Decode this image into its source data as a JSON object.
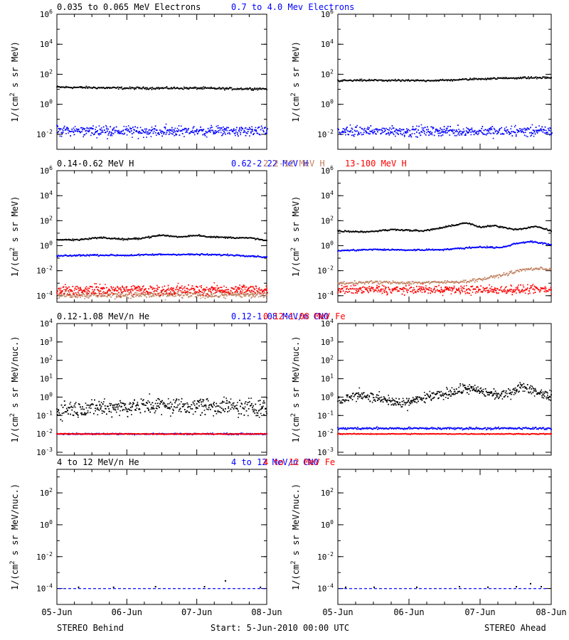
{
  "footer": {
    "left": "STEREO Behind",
    "center": "Start:  5-Jun-2010 00:00 UTC",
    "right": "STEREO Ahead"
  },
  "colors": {
    "black": "#000000",
    "blue": "#0000ff",
    "tan": "#c08060",
    "red": "#ff0000"
  },
  "x_ticks": [
    "05-Jun",
    "06-Jun",
    "07-Jun",
    "08-Jun"
  ],
  "chart_data": [
    {
      "type": "scatter",
      "row": 0,
      "side": "behind",
      "ylabel": "1/(cm2 s sr MeV)",
      "yscale": "log",
      "ylim": [
        0.001,
        1000000
      ],
      "ytick_exps": [
        -2,
        0,
        2,
        4,
        6
      ],
      "xlim": [
        0,
        3
      ],
      "legend": [
        {
          "label": "0.035 to 0.065 MeV Electrons",
          "color": "#000000"
        },
        {
          "label": "0.7 to 4.0 Mev Electrons",
          "color": "#0000ff"
        }
      ],
      "series": [
        {
          "name": "0.035 to 0.065 MeV Electrons",
          "color": "#000000",
          "x": [
            0,
            0.5,
            1,
            1.5,
            2,
            2.5,
            3
          ],
          "y": [
            14,
            13,
            12,
            12,
            12,
            11,
            11
          ],
          "scatter": 0.06
        },
        {
          "name": "0.7 to 4.0 Mev Electrons",
          "color": "#0000ff",
          "x": [
            0,
            0.5,
            1,
            1.5,
            2,
            2.5,
            3
          ],
          "y": [
            0.018,
            0.017,
            0.016,
            0.016,
            0.016,
            0.016,
            0.016
          ],
          "scatter": 0.25
        }
      ]
    },
    {
      "type": "scatter",
      "row": 0,
      "side": "ahead",
      "ylabel": "1/(cm2 s sr MeV)",
      "yscale": "log",
      "ylim": [
        0.001,
        1000000
      ],
      "ytick_exps": [
        -2,
        0,
        2,
        4,
        6
      ],
      "xlim": [
        0,
        3
      ],
      "legend": [],
      "series": [
        {
          "name": "0.035 to 0.065 MeV Electrons",
          "color": "#000000",
          "x": [
            0,
            0.5,
            1,
            1.5,
            2,
            2.5,
            3
          ],
          "y": [
            38,
            40,
            38,
            40,
            50,
            58,
            60
          ],
          "scatter": 0.05
        },
        {
          "name": "0.7 to 4.0 Mev Electrons",
          "color": "#0000ff",
          "x": [
            0,
            0.5,
            1,
            1.5,
            2,
            2.5,
            3
          ],
          "y": [
            0.016,
            0.016,
            0.016,
            0.016,
            0.016,
            0.016,
            0.016
          ],
          "scatter": 0.25
        }
      ]
    },
    {
      "type": "scatter",
      "row": 1,
      "side": "behind",
      "ylabel": "1/(cm2 s sr MeV)",
      "yscale": "log",
      "ylim": [
        3e-05,
        1000000
      ],
      "ytick_exps": [
        -4,
        -2,
        0,
        2,
        4,
        6
      ],
      "xlim": [
        0,
        3
      ],
      "legend": [
        {
          "label": "0.14-0.62 MeV H",
          "color": "#000000"
        },
        {
          "label": "0.62-2.22 MeV H",
          "color": "#0000ff"
        },
        {
          "label": "2.2-12 MeV H",
          "color": "#c08060"
        },
        {
          "label": "13-100 MeV H",
          "color": "#ff0000"
        }
      ],
      "series": [
        {
          "name": "0.14-0.62 MeV H",
          "color": "#000000",
          "x": [
            0,
            0.3,
            0.6,
            1,
            1.2,
            1.5,
            1.75,
            2,
            2.2,
            2.5,
            2.8,
            3
          ],
          "y": [
            3,
            3,
            4.5,
            3.2,
            4,
            7,
            5,
            7,
            5,
            4.5,
            4,
            2.5
          ],
          "scatter": 0.05
        },
        {
          "name": "0.62-2.22 MeV H",
          "color": "#0000ff",
          "x": [
            0,
            0.5,
            1,
            1.5,
            2,
            2.5,
            2.8,
            3
          ],
          "y": [
            0.15,
            0.18,
            0.17,
            0.2,
            0.2,
            0.18,
            0.15,
            0.12
          ],
          "scatter": 0.05
        },
        {
          "name": "2.2-12 MeV H",
          "color": "#c08060",
          "x": [
            0,
            1,
            2,
            3
          ],
          "y": [
            0.00012,
            0.00012,
            0.00012,
            0.00012
          ],
          "scatter": 0.2
        },
        {
          "name": "13-100 MeV H",
          "color": "#ff0000",
          "x": [
            0,
            1,
            2,
            3
          ],
          "y": [
            0.0003,
            0.0003,
            0.0003,
            0.0003
          ],
          "scatter": 0.3
        }
      ]
    },
    {
      "type": "scatter",
      "row": 1,
      "side": "ahead",
      "ylabel": "1/(cm2 s sr MeV)",
      "yscale": "log",
      "ylim": [
        3e-05,
        1000000
      ],
      "ytick_exps": [
        -4,
        -2,
        0,
        2,
        4,
        6
      ],
      "xlim": [
        0,
        3
      ],
      "legend": [],
      "series": [
        {
          "name": "0.14-0.62 MeV H",
          "color": "#000000",
          "x": [
            0,
            0.4,
            0.8,
            1.2,
            1.5,
            1.8,
            2,
            2.2,
            2.5,
            2.8,
            3
          ],
          "y": [
            15,
            13,
            20,
            15,
            30,
            70,
            30,
            40,
            20,
            35,
            15
          ],
          "scatter": 0.05
        },
        {
          "name": "0.62-2.22 MeV H",
          "color": "#0000ff",
          "x": [
            0,
            0.5,
            1,
            1.5,
            2,
            2.3,
            2.5,
            2.7,
            3
          ],
          "y": [
            0.4,
            0.5,
            0.45,
            0.5,
            0.8,
            0.7,
            1.5,
            2.2,
            1.2
          ],
          "scatter": 0.05
        },
        {
          "name": "2.2-12 MeV H",
          "color": "#c08060",
          "x": [
            0,
            0.5,
            1,
            1.5,
            1.8,
            2.1,
            2.4,
            2.6,
            2.8,
            3
          ],
          "y": [
            0.001,
            0.0012,
            0.0011,
            0.0012,
            0.0014,
            0.0025,
            0.006,
            0.012,
            0.015,
            0.013
          ],
          "scatter": 0.1
        },
        {
          "name": "13-100 MeV H",
          "color": "#ff0000",
          "x": [
            0,
            1,
            2,
            3
          ],
          "y": [
            0.0003,
            0.0003,
            0.0003,
            0.0003
          ],
          "scatter": 0.25
        }
      ]
    },
    {
      "type": "scatter",
      "row": 2,
      "side": "behind",
      "ylabel": "1/(cm2 s sr MeV/nuc.)",
      "yscale": "log",
      "ylim": [
        0.0007,
        10000
      ],
      "ytick_exps": [
        -3,
        -2,
        -1,
        0,
        1,
        2,
        3,
        4
      ],
      "xlim": [
        0,
        3
      ],
      "legend": [
        {
          "label": "0.12-1.08 MeV/n He",
          "color": "#000000"
        },
        {
          "label": "0.12-1.08 MeV/n CNO",
          "color": "#0000ff"
        },
        {
          "label": "0.12-1.08 MeV Fe",
          "color": "#ff0000"
        }
      ],
      "series": [
        {
          "name": "0.12-1.08 MeV/n He",
          "color": "#000000",
          "x": [
            0,
            0.5,
            1,
            1.5,
            2,
            2.5,
            3
          ],
          "y": [
            0.2,
            0.25,
            0.3,
            0.35,
            0.35,
            0.3,
            0.25
          ],
          "scatter": 0.35
        },
        {
          "name": "0.12-1.08 MeV/n CNO",
          "color": "#0000ff",
          "x": [
            0,
            1,
            2,
            3
          ],
          "y": [
            0.01,
            0.01,
            0.01,
            0.01
          ],
          "scatter": 0.03
        },
        {
          "name": "0.12-1.08 MeV Fe",
          "color": "#ff0000",
          "x": [
            0,
            1,
            2,
            3
          ],
          "y": [
            0.01,
            0.01,
            0.01,
            0.01
          ],
          "scatter": 0.02
        }
      ]
    },
    {
      "type": "scatter",
      "row": 2,
      "side": "ahead",
      "ylabel": "1/(cm2 s sr MeV/nuc.)",
      "yscale": "log",
      "ylim": [
        0.0007,
        10000
      ],
      "ytick_exps": [
        -3,
        -2,
        -1,
        0,
        1,
        2,
        3,
        4
      ],
      "xlim": [
        0,
        3
      ],
      "legend": [],
      "series": [
        {
          "name": "0.12-1.08 MeV/n He",
          "color": "#000000",
          "x": [
            0,
            0.3,
            0.6,
            0.9,
            1.2,
            1.5,
            1.8,
            2,
            2.3,
            2.6,
            2.8,
            3
          ],
          "y": [
            0.6,
            1.5,
            0.8,
            0.4,
            0.9,
            1.5,
            3,
            2,
            1.2,
            4,
            2,
            1
          ],
          "scatter": 0.2
        },
        {
          "name": "0.12-1.08 MeV/n CNO",
          "color": "#0000ff",
          "x": [
            0,
            1,
            2,
            3
          ],
          "y": [
            0.02,
            0.02,
            0.02,
            0.02
          ],
          "scatter": 0.05
        },
        {
          "name": "0.12-1.08 MeV Fe",
          "color": "#ff0000",
          "x": [
            0,
            1,
            2,
            3
          ],
          "y": [
            0.01,
            0.01,
            0.01,
            0.01
          ],
          "scatter": 0.02
        }
      ]
    },
    {
      "type": "scatter",
      "row": 3,
      "side": "behind",
      "ylabel": "1/(cm2 s sr MeV/nuc.)",
      "yscale": "log",
      "ylim": [
        1e-05,
        3000
      ],
      "ytick_exps": [
        -4,
        -2,
        0,
        2
      ],
      "xlim": [
        0,
        3
      ],
      "legend": [
        {
          "label": "4 to 12 MeV/n He",
          "color": "#000000"
        },
        {
          "label": "4 to 12 MeV/n CNO",
          "color": "#0000ff"
        },
        {
          "label": "4 to 12 MeV Fe",
          "color": "#ff0000"
        }
      ],
      "series": [
        {
          "name": "4 to 12 MeV/n CNO",
          "color": "#0000ff",
          "x": [
            0,
            1,
            2,
            3
          ],
          "y": [
            0.0001,
            0.0001,
            0.0001,
            0.0001
          ],
          "scatter": 0
        },
        {
          "name": "4 to 12 MeV/n He",
          "color": "#000000",
          "x": [
            0.3,
            0.8,
            1.4,
            2.1,
            2.4,
            2.9
          ],
          "y": [
            0.00012,
            0.00012,
            0.00013,
            0.00013,
            0.0003,
            0.00012
          ],
          "scatter": 0
        }
      ]
    },
    {
      "type": "scatter",
      "row": 3,
      "side": "ahead",
      "ylabel": "1/(cm2 s sr MeV/nuc.)",
      "yscale": "log",
      "ylim": [
        1e-05,
        3000
      ],
      "ytick_exps": [
        -4,
        -2,
        0,
        2
      ],
      "xlim": [
        0,
        3
      ],
      "legend": [],
      "series": [
        {
          "name": "4 to 12 MeV/n CNO",
          "color": "#0000ff",
          "x": [
            0,
            1,
            2,
            3
          ],
          "y": [
            0.0001,
            0.0001,
            0.0001,
            0.0001
          ],
          "scatter": 0
        },
        {
          "name": "4 to 12 MeV/n He",
          "color": "#000000",
          "x": [
            0.1,
            0.5,
            1.1,
            1.7,
            2.1,
            2.5,
            2.7,
            2.85
          ],
          "y": [
            0.00012,
            0.00012,
            0.00012,
            0.00013,
            0.00012,
            0.00013,
            0.0002,
            0.00013
          ],
          "scatter": 0
        }
      ]
    }
  ]
}
